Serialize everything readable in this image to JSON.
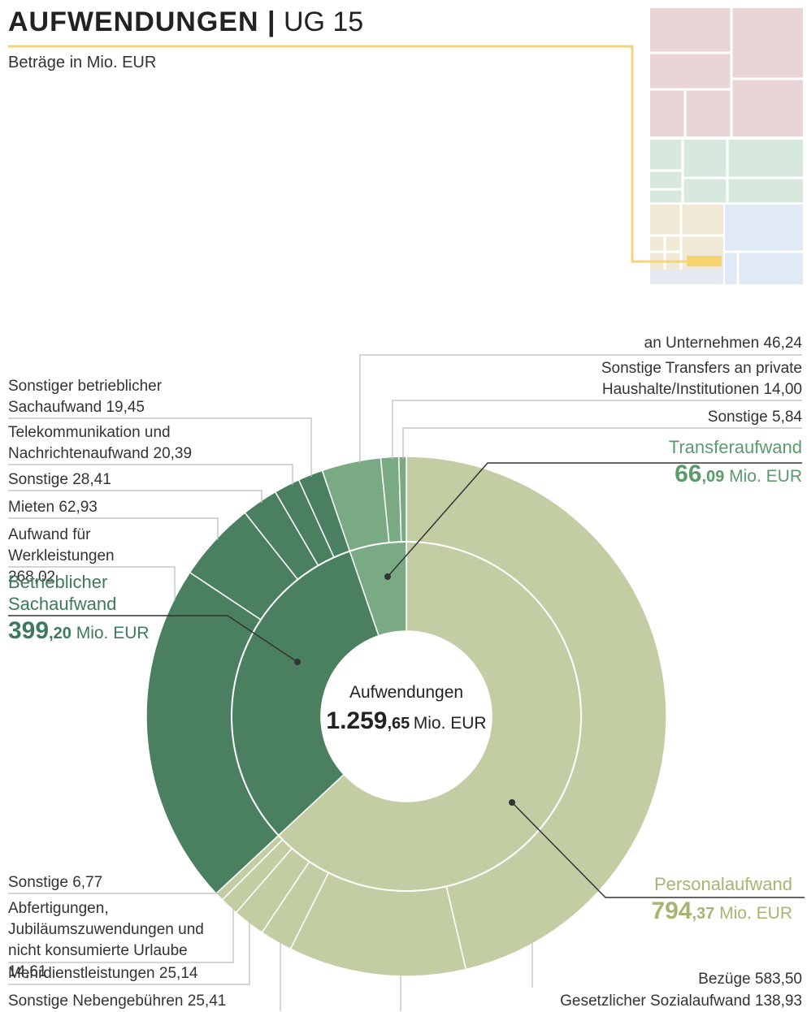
{
  "chart_data": {
    "type": "sunburst",
    "title": "AUFWENDUNGEN |",
    "title_tag": "UG 15",
    "subtitle": "Beträge in Mio. EUR",
    "center_label": "Aufwendungen",
    "unit": "Mio. EUR",
    "total": 1259.65,
    "total_label": "1.259,65",
    "groups": [
      {
        "name": "Personalaufwand",
        "color": "#c3cda3",
        "text_color": "#a8b572",
        "value": 794.37,
        "value_label": "794,37",
        "children": {
          "names": [
            "Bezüge",
            "Gesetzlicher Sozialaufwand",
            "Sonstige Nebengebühren",
            "Mehrdienstleistungen",
            "Abfertigungen, Jubiläumszuwendungen und nicht konsumierte Urlaube",
            "Sonstige"
          ],
          "values": [
            583.5,
            138.93,
            25.41,
            25.14,
            14.61,
            6.77
          ],
          "value_labels": [
            "583,50",
            "138,93",
            "25,41",
            "25,14",
            "14,61",
            "6,77"
          ]
        }
      },
      {
        "name": "Betrieblicher Sachaufwand",
        "color": "#4a8060",
        "text_color": "#3f7a58",
        "value": 399.2,
        "value_label": "399,20",
        "children": {
          "names": [
            "Aufwand für Werkleistungen",
            "Mieten",
            "Sonstige",
            "Telekommunikation und Nachrichtenaufwand",
            "Sonstiger betrieblicher Sachaufwand"
          ],
          "values": [
            268.02,
            62.93,
            28.41,
            20.39,
            19.45
          ],
          "value_labels": [
            "268,02",
            "62,93",
            "28,41",
            "20,39",
            "19,45"
          ]
        }
      },
      {
        "name": "Transferaufwand",
        "color": "#7aaa83",
        "text_color": "#5c9a6b",
        "value": 66.09,
        "value_label": "66,09",
        "children": {
          "names": [
            "an Unternehmen",
            "Sonstige Transfers an private Haushalte/Institutionen",
            "Sonstige"
          ],
          "values": [
            46.24,
            14.0,
            5.84
          ],
          "value_labels": [
            "46,24",
            "14,00",
            "5,84"
          ]
        }
      }
    ]
  }
}
